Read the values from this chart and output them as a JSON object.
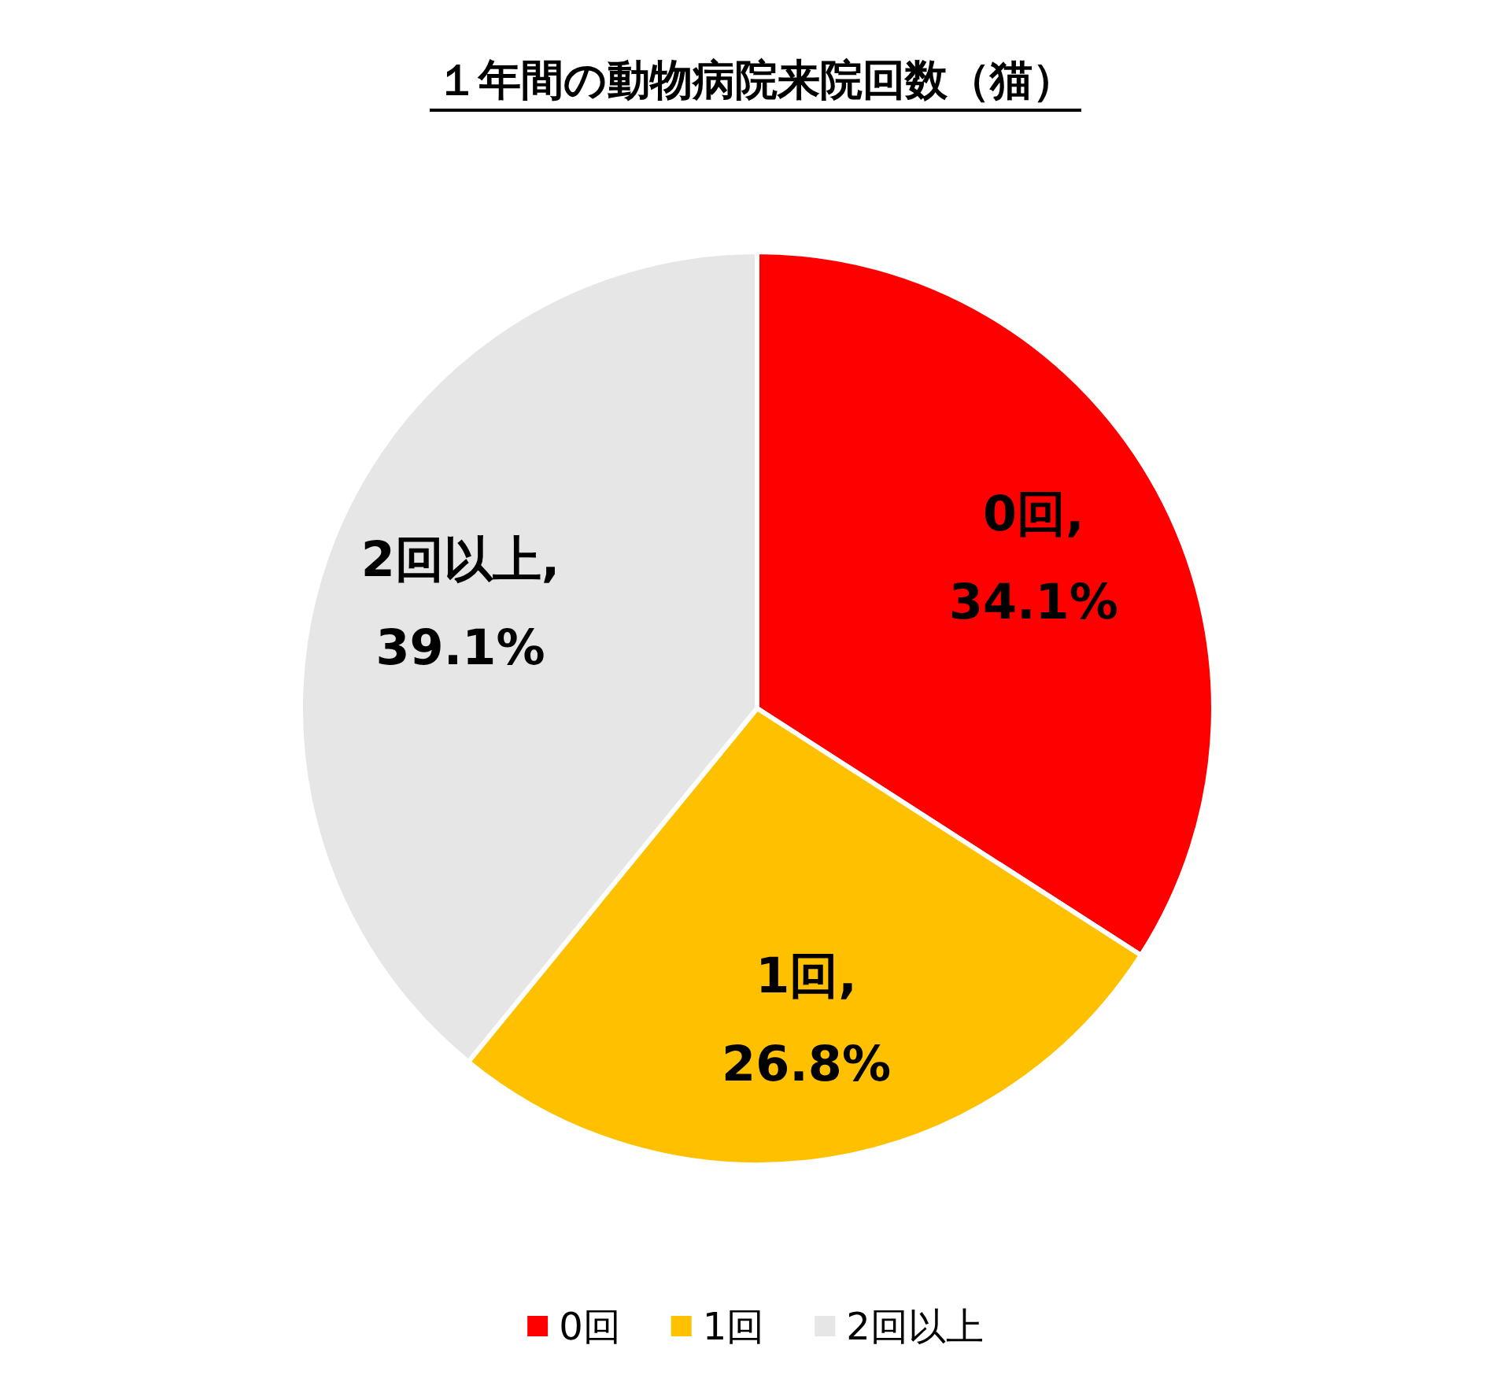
{
  "chart_data": {
    "type": "pie",
    "title": "１年間の動物病院来院回数（猫）",
    "categories": [
      "0回",
      "1回",
      "2回以上"
    ],
    "values": [
      34.1,
      26.8,
      39.1
    ],
    "colors": [
      "#ff0000",
      "#ffc000",
      "#e6e6e6"
    ],
    "value_labels": [
      "0回, 34.1%",
      "1回, 26.8%",
      "2回以上, 39.1%"
    ],
    "legend": "bottom"
  }
}
